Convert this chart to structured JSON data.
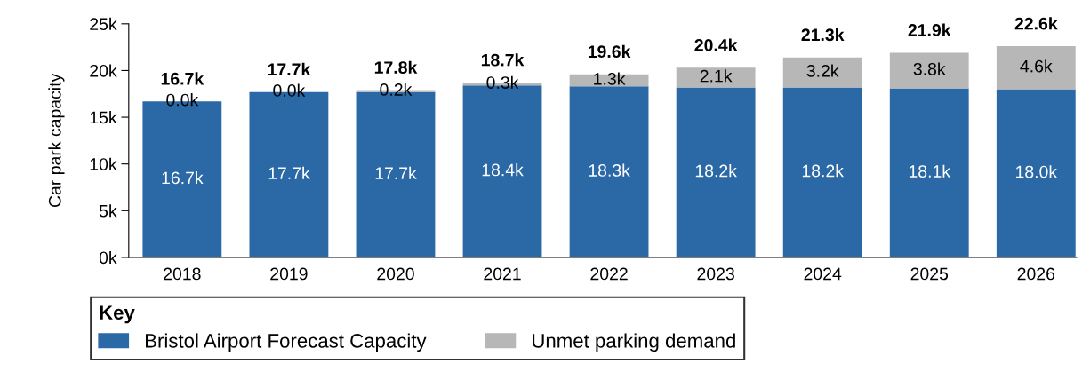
{
  "chart_data": {
    "type": "bar",
    "stacked": true,
    "ylabel": "Car park capacity",
    "categories": [
      "2018",
      "2019",
      "2020",
      "2021",
      "2022",
      "2023",
      "2024",
      "2025",
      "2026"
    ],
    "series": [
      {
        "name": "Bristol Airport Forecast Capacity",
        "color": "#2a69a6",
        "values": [
          16700,
          17700,
          17700,
          18400,
          18300,
          18200,
          18200,
          18100,
          18000
        ],
        "value_labels": [
          "16.7k",
          "17.7k",
          "17.7k",
          "18.4k",
          "18.3k",
          "18.2k",
          "18.2k",
          "18.1k",
          "18.0k"
        ]
      },
      {
        "name": "Unmet parking demand",
        "color": "#b7b7b7",
        "values": [
          0,
          0,
          200,
          300,
          1300,
          2100,
          3200,
          3800,
          4600
        ],
        "value_labels": [
          "0.0k",
          "0.0k",
          "0.2k",
          "0.3k",
          "1.3k",
          "2.1k",
          "3.2k",
          "3.8k",
          "4.6k"
        ]
      }
    ],
    "totals": [
      "16.7k",
      "17.7k",
      "17.8k",
      "18.7k",
      "19.6k",
      "20.4k",
      "21.3k",
      "21.9k",
      "22.6k"
    ],
    "ylim": [
      0,
      25000
    ],
    "yticks": [
      {
        "value": 0,
        "label": "0k"
      },
      {
        "value": 5000,
        "label": "5k"
      },
      {
        "value": 10000,
        "label": "10k"
      },
      {
        "value": 15000,
        "label": "15k"
      },
      {
        "value": 20000,
        "label": "20k"
      },
      {
        "value": 25000,
        "label": "25k"
      }
    ],
    "legend_title": "Key",
    "legend": "bottom",
    "grid": false
  }
}
